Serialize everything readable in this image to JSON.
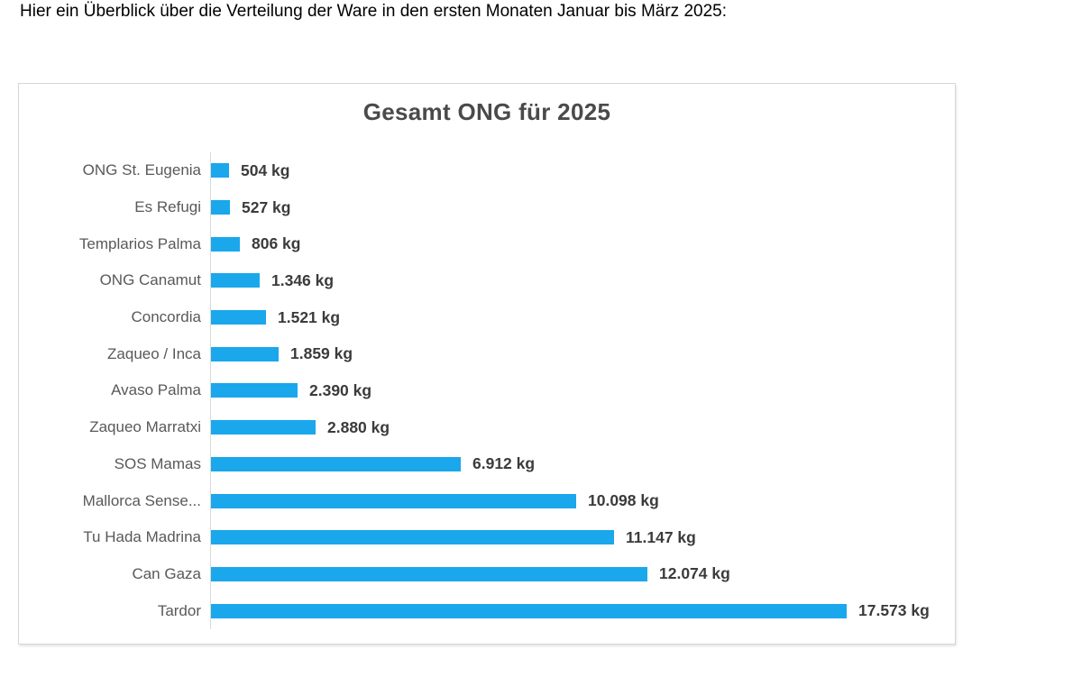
{
  "intro": {
    "text": "Hier ein Überblick über die Verteilung der Ware in den ersten Monaten Januar bis März 2025:"
  },
  "chart_data": {
    "type": "bar",
    "orientation": "horizontal",
    "title": "Gesamt ONG für 2025",
    "unit": "kg",
    "xlim": [
      0,
      17573
    ],
    "grid": false,
    "legend": "none",
    "sort_order": "ascending-top-to-bottom",
    "bar_color": "#1aa7ec",
    "label_color": "#595959",
    "value_color": "#3b3b3b",
    "title_color": "#4a4a4a",
    "categories": [
      "ONG St. Eugenia",
      "Es Refugi",
      "Templarios Palma",
      "ONG Canamut",
      "Concordia",
      "Zaqueo / Inca",
      "Avaso Palma",
      "Zaqueo Marratxi",
      "SOS Mamas",
      "Mallorca Sense...",
      "Tu Hada Madrina",
      "Can Gaza",
      "Tardor"
    ],
    "values": [
      504,
      527,
      806,
      1346,
      1521,
      1859,
      2390,
      2880,
      6912,
      10098,
      11147,
      12074,
      17573
    ],
    "value_labels": [
      "504 kg",
      "527 kg",
      "806 kg",
      "1.346 kg",
      "1.521 kg",
      "1.859 kg",
      "2.390 kg",
      "2.880 kg",
      "6.912 kg",
      "10.098 kg",
      "11.147 kg",
      "12.074 kg",
      "17.573 kg"
    ]
  }
}
